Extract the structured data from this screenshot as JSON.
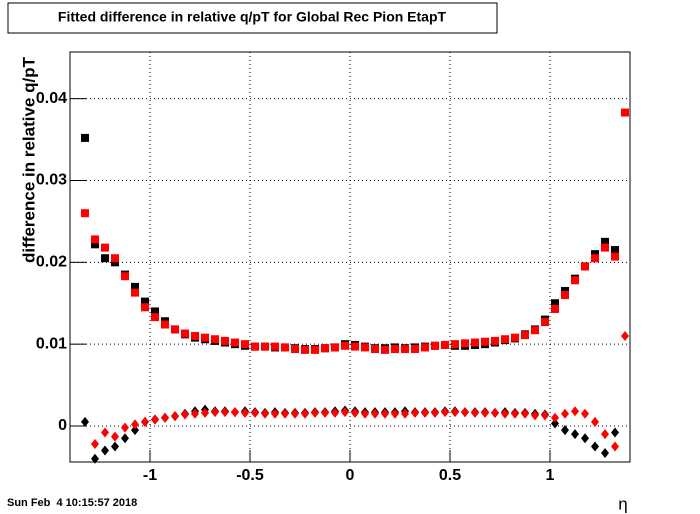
{
  "chart_data": {
    "type": "scatter",
    "title": "Fitted difference in relative q/pT for Global Rec Pion EtapT",
    "y_label": "difference in relative q/pT",
    "x_label": "η",
    "timestamp": "Sun Feb  4 10:15:57 2018",
    "xlim": [
      -1.4,
      1.4
    ],
    "ylim": [
      -0.0044,
      0.0457
    ],
    "xticks": [
      -1,
      -0.5,
      0,
      0.5,
      1
    ],
    "yticks": [
      0,
      0.01,
      0.02,
      0.03,
      0.04
    ],
    "grid": true,
    "x": [
      -1.325,
      -1.275,
      -1.225,
      -1.175,
      -1.125,
      -1.075,
      -1.025,
      -0.975,
      -0.925,
      -0.875,
      -0.825,
      -0.775,
      -0.725,
      -0.675,
      -0.625,
      -0.575,
      -0.525,
      -0.475,
      -0.425,
      -0.375,
      -0.325,
      -0.275,
      -0.225,
      -0.175,
      -0.125,
      -0.075,
      -0.025,
      0.025,
      0.075,
      0.125,
      0.175,
      0.225,
      0.275,
      0.325,
      0.375,
      0.425,
      0.475,
      0.525,
      0.575,
      0.625,
      0.675,
      0.725,
      0.775,
      0.825,
      0.875,
      0.925,
      0.975,
      1.025,
      1.075,
      1.125,
      1.175,
      1.225,
      1.275,
      1.325,
      1.375
    ],
    "series": [
      {
        "color": "#000000",
        "marker": "square",
        "values": [
          0.0352,
          0.0222,
          0.0205,
          0.02,
          0.0185,
          0.017,
          0.0152,
          0.014,
          0.0128,
          0.0118,
          0.0112,
          0.0108,
          0.0106,
          0.0104,
          0.0102,
          0.01,
          0.0098,
          0.0097,
          0.0097,
          0.0096,
          0.0096,
          0.0095,
          0.0094,
          0.0094,
          0.0095,
          0.0096,
          0.01,
          0.0099,
          0.0097,
          0.0095,
          0.0095,
          0.0096,
          0.0095,
          0.0096,
          0.0097,
          0.0098,
          0.0099,
          0.0098,
          0.0098,
          0.0099,
          0.01,
          0.0102,
          0.0105,
          0.0107,
          0.0112,
          0.0118,
          0.013,
          0.015,
          0.0165,
          0.018,
          0.0195,
          0.021,
          0.0225,
          0.0215,
          null
        ]
      },
      {
        "color": "#ff0000",
        "marker": "square",
        "values": [
          0.026,
          0.0228,
          0.0218,
          0.0205,
          0.0183,
          0.0163,
          0.0145,
          0.0133,
          0.0124,
          0.0118,
          0.0113,
          0.011,
          0.0108,
          0.0106,
          0.0104,
          0.0102,
          0.01,
          0.0097,
          0.0097,
          0.0097,
          0.0096,
          0.0094,
          0.0093,
          0.0093,
          0.0095,
          0.0096,
          0.0098,
          0.0097,
          0.0096,
          0.0094,
          0.0093,
          0.0094,
          0.0094,
          0.0094,
          0.0096,
          0.0098,
          0.0099,
          0.01,
          0.0101,
          0.0102,
          0.0103,
          0.0104,
          0.0106,
          0.0108,
          0.0111,
          0.0117,
          0.0127,
          0.0143,
          0.016,
          0.0178,
          0.0195,
          0.0205,
          0.0218,
          0.0207,
          0.0383
        ]
      },
      {
        "color": "#000000",
        "marker": "diamond",
        "values": [
          0.0005,
          -0.004,
          -0.003,
          -0.0025,
          -0.0015,
          -0.0005,
          0.0005,
          0.0008,
          0.001,
          0.0012,
          0.0015,
          0.0018,
          0.002,
          0.0018,
          0.0018,
          0.0017,
          0.0018,
          0.0017,
          0.0016,
          0.0017,
          0.0016,
          0.0016,
          0.0016,
          0.0017,
          0.0017,
          0.0018,
          0.0019,
          0.0018,
          0.0017,
          0.0017,
          0.0017,
          0.0017,
          0.0018,
          0.0017,
          0.0017,
          0.0017,
          0.0018,
          0.0018,
          0.0017,
          0.0017,
          0.0017,
          0.0016,
          0.0017,
          0.0016,
          0.0016,
          0.0015,
          0.0014,
          0.0003,
          -0.0005,
          -0.001,
          -0.0015,
          -0.0025,
          -0.0033,
          -0.0008,
          null
        ]
      },
      {
        "color": "#ff0000",
        "marker": "diamond",
        "values": [
          null,
          -0.0022,
          -0.0008,
          -0.0013,
          -0.0002,
          0.0002,
          0.0005,
          0.0008,
          0.001,
          0.0012,
          0.0014,
          0.0015,
          0.0016,
          0.0017,
          0.0017,
          0.0017,
          0.0016,
          0.0016,
          0.0015,
          0.0015,
          0.0015,
          0.0015,
          0.0015,
          0.0016,
          0.0016,
          0.0016,
          0.0017,
          0.0016,
          0.0015,
          0.0015,
          0.0015,
          0.0015,
          0.0015,
          0.0016,
          0.0016,
          0.0016,
          0.0017,
          0.0017,
          0.0017,
          0.0016,
          0.0016,
          0.0016,
          0.0015,
          0.0015,
          0.0015,
          0.0013,
          0.0013,
          0.001,
          0.0015,
          0.0018,
          0.0015,
          0.0005,
          -0.001,
          -0.0025,
          0.011
        ]
      }
    ]
  }
}
